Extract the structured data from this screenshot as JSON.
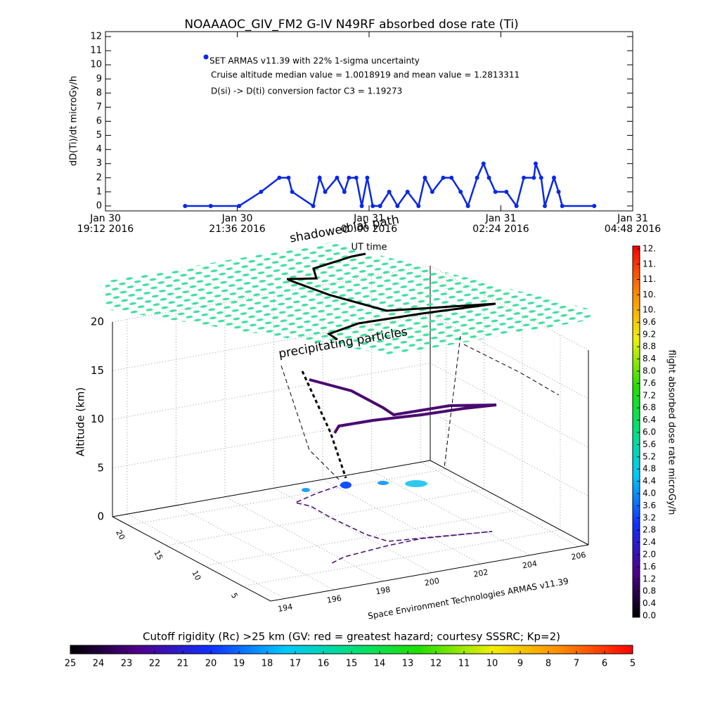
{
  "chart_data": [
    {
      "type": "line",
      "title": "NOAAAOC_GIV_FM2 G-IV    N49RF  absorbed dose rate (Ti)",
      "ylabel": "dD(Ti)/dt microGy/h",
      "xlabel": "UT time",
      "annotations": [
        "Cruise altitude median value = 1.0018919 and mean value = 1.2813311",
        "D(si) -> D(ti) conversion factor C3 = 1.19273"
      ],
      "xlim": [
        "2016-01-30 19:12",
        "2016-01-31 04:48"
      ],
      "xticks": [
        {
          "value": "2016-01-30 19:12",
          "label": "Jan 30\n19:12 2016"
        },
        {
          "value": "2016-01-30 21:36",
          "label": "Jan 30\n21:36 2016"
        },
        {
          "value": "2016-01-31 00:00",
          "label": "Jan 31\n00:00 2016"
        },
        {
          "value": "2016-01-31 02:24",
          "label": "Jan 31\n02:24 2016"
        },
        {
          "value": "2016-01-31 04:48",
          "label": "Jan 31\n04:48 2016"
        }
      ],
      "ylim": [
        -0.35,
        12.35
      ],
      "yticks": [
        0,
        1,
        2,
        3,
        4,
        5,
        6,
        7,
        8,
        9,
        10,
        11,
        12
      ],
      "series": [
        {
          "name": "SET ARMAS v11.39 with 22% 1-sigma uncertainty",
          "color": "#0a28e6",
          "x": [
            "2016-01-30 20:39",
            "2016-01-30 21:07",
            "2016-01-30 21:38",
            "2016-01-30 22:02",
            "2016-01-30 22:22",
            "2016-01-30 22:32",
            "2016-01-30 22:36",
            "2016-01-30 22:59",
            "2016-01-30 23:06",
            "2016-01-30 23:12",
            "2016-01-30 23:25",
            "2016-01-30 23:33",
            "2016-01-30 23:38",
            "2016-01-30 23:46",
            "2016-01-30 23:52",
            "2016-01-30 23:58",
            "2016-01-31 00:04",
            "2016-01-31 00:12",
            "2016-01-31 00:22",
            "2016-01-31 00:31",
            "2016-01-31 00:42",
            "2016-01-31 00:54",
            "2016-01-31 01:01",
            "2016-01-31 01:09",
            "2016-01-31 01:21",
            "2016-01-31 01:30",
            "2016-01-31 01:40",
            "2016-01-31 01:48",
            "2016-01-31 01:58",
            "2016-01-31 02:05",
            "2016-01-31 02:11",
            "2016-01-31 02:18",
            "2016-01-31 02:30",
            "2016-01-31 02:41",
            "2016-01-31 02:49",
            "2016-01-31 03:00",
            "2016-01-31 03:02",
            "2016-01-31 03:08",
            "2016-01-31 03:12",
            "2016-01-31 03:22",
            "2016-01-31 03:27",
            "2016-01-31 03:31",
            "2016-01-31 04:06"
          ],
          "values": [
            0,
            0,
            0,
            1,
            2,
            2,
            1,
            0,
            2,
            1,
            2,
            1,
            2,
            2,
            0,
            2,
            0,
            0,
            1,
            0,
            1,
            0,
            2,
            1,
            2,
            2,
            1,
            0,
            2,
            3,
            2,
            1,
            1,
            0,
            2,
            2,
            3,
            2,
            0,
            2,
            1,
            0,
            0
          ]
        }
      ]
    },
    {
      "type": "surface3d",
      "zlabel": "Altitude (km)",
      "annotations": [
        "shadowed lat path",
        "precipitating particles"
      ],
      "credit": "Space Environment Technologies ARMAS v11.39",
      "xlim": [
        193.4,
        206.4
      ],
      "xticks": [
        194,
        196,
        198,
        200,
        202,
        204,
        206
      ],
      "ylim": [
        22.1,
        1.3
      ],
      "yticks": [
        20,
        15,
        10,
        5
      ],
      "zlim": [
        0,
        20
      ],
      "zticks": [
        0,
        5,
        10,
        15,
        20
      ]
    },
    {
      "type": "colorbar",
      "label": "flight absorbed dose rate microGy/h",
      "ylim": [
        0,
        12
      ],
      "yticks": [
        {
          "value": 0,
          "label": "0.0"
        },
        0.4,
        0.8,
        1.2,
        1.6,
        {
          "value": 2,
          "label": "2.0"
        },
        2.4,
        2.8,
        3.2,
        3.6,
        {
          "value": 4,
          "label": "4.0"
        },
        4.4,
        4.8,
        5.2,
        5.6,
        {
          "value": 6,
          "label": "6.0"
        },
        6.4,
        6.8,
        7.2,
        7.6,
        {
          "value": 8,
          "label": "8.0"
        },
        8.4,
        8.8,
        9.2,
        9.6,
        {
          "value": 10,
          "label": "10."
        },
        {
          "value": 10.5,
          "label": "10."
        },
        {
          "value": 11,
          "label": "11."
        },
        {
          "value": 11.5,
          "label": "11."
        },
        {
          "value": 12,
          "label": "12."
        }
      ]
    },
    {
      "type": "colorbar",
      "label": "Cutoff rigidity (Rc) >25 km (GV: red = greatest hazard; courtesy SSSRC; Kp=2)",
      "xlim": [
        25,
        5
      ],
      "xticks": [
        25,
        24,
        23,
        22,
        21,
        20,
        19,
        18,
        17,
        16,
        15,
        14,
        13,
        12,
        11,
        10,
        9,
        8,
        7,
        6,
        5
      ]
    }
  ]
}
